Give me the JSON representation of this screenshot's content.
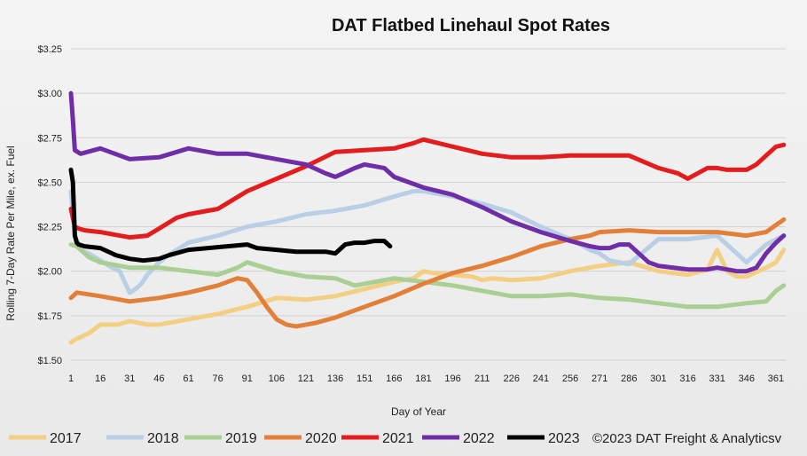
{
  "chart_data": {
    "type": "line",
    "title": "DAT Flatbed Linehaul Spot Rates",
    "xlabel": "Day of Year",
    "ylabel": "Rolling 7-Day Rate Per Mile, ex. Fuel",
    "xlim": [
      1,
      366
    ],
    "ylim": [
      1.5,
      3.25
    ],
    "grid": "horizontal",
    "x_ticks": [
      "1",
      "16",
      "31",
      "46",
      "61",
      "76",
      "91",
      "106",
      "121",
      "136",
      "151",
      "166",
      "181",
      "196",
      "211",
      "226",
      "241",
      "256",
      "271",
      "286",
      "301",
      "316",
      "331",
      "346",
      "361"
    ],
    "y_ticks": [
      "$1.50",
      "$1.75",
      "$2.00",
      "$2.25",
      "$2.50",
      "$2.75",
      "$3.00",
      "$3.25"
    ],
    "y_tick_values": [
      1.5,
      1.75,
      2.0,
      2.25,
      2.5,
      2.75,
      3.0,
      3.25
    ],
    "legend_position": "bottom",
    "annotation": "©2023 DAT Freight & Analyticsv",
    "series": [
      {
        "name": "2017",
        "color": "#f3cf84",
        "x": [
          1,
          4,
          10,
          16,
          25,
          31,
          40,
          46,
          61,
          76,
          91,
          106,
          121,
          136,
          151,
          166,
          176,
          181,
          186,
          196,
          206,
          211,
          216,
          226,
          241,
          256,
          271,
          286,
          301,
          316,
          326,
          331,
          336,
          341,
          346,
          356,
          361,
          365
        ],
        "y": [
          1.6,
          1.62,
          1.65,
          1.7,
          1.7,
          1.72,
          1.7,
          1.7,
          1.73,
          1.76,
          1.8,
          1.85,
          1.84,
          1.86,
          1.9,
          1.94,
          1.96,
          2.0,
          1.99,
          1.98,
          1.97,
          1.95,
          1.96,
          1.95,
          1.96,
          2.0,
          2.03,
          2.05,
          2.0,
          1.98,
          2.01,
          2.12,
          2.0,
          1.97,
          1.97,
          2.02,
          2.05,
          2.12
        ]
      },
      {
        "name": "2018",
        "color": "#b8cfe6",
        "x": [
          1,
          3,
          6,
          10,
          16,
          22,
          26,
          28,
          31,
          34,
          37,
          40,
          46,
          52,
          61,
          76,
          91,
          106,
          121,
          136,
          151,
          166,
          176,
          181,
          196,
          211,
          226,
          241,
          256,
          266,
          271,
          276,
          286,
          301,
          316,
          331,
          336,
          346,
          356,
          365
        ],
        "y": [
          2.45,
          2.2,
          2.12,
          2.1,
          2.06,
          2.02,
          2.0,
          1.95,
          1.88,
          1.9,
          1.93,
          1.98,
          2.05,
          2.1,
          2.16,
          2.2,
          2.25,
          2.28,
          2.32,
          2.34,
          2.37,
          2.42,
          2.45,
          2.45,
          2.42,
          2.38,
          2.33,
          2.25,
          2.18,
          2.12,
          2.1,
          2.06,
          2.04,
          2.18,
          2.18,
          2.2,
          2.15,
          2.05,
          2.15,
          2.2
        ]
      },
      {
        "name": "2019",
        "color": "#a9cf94",
        "x": [
          1,
          4,
          10,
          16,
          31,
          46,
          61,
          76,
          86,
          91,
          106,
          121,
          136,
          146,
          151,
          166,
          181,
          196,
          211,
          226,
          241,
          256,
          271,
          286,
          301,
          316,
          331,
          346,
          356,
          361,
          365
        ],
        "y": [
          2.15,
          2.14,
          2.08,
          2.05,
          2.02,
          2.02,
          2.0,
          1.98,
          2.02,
          2.05,
          2.0,
          1.97,
          1.96,
          1.92,
          1.93,
          1.96,
          1.94,
          1.92,
          1.89,
          1.86,
          1.86,
          1.87,
          1.85,
          1.84,
          1.82,
          1.8,
          1.8,
          1.82,
          1.83,
          1.89,
          1.92
        ]
      },
      {
        "name": "2020",
        "color": "#e2803a",
        "x": [
          1,
          4,
          10,
          16,
          31,
          46,
          61,
          76,
          86,
          91,
          96,
          101,
          106,
          111,
          116,
          121,
          126,
          136,
          151,
          166,
          181,
          196,
          211,
          226,
          241,
          256,
          266,
          271,
          286,
          301,
          316,
          331,
          346,
          356,
          361,
          365
        ],
        "y": [
          1.85,
          1.88,
          1.87,
          1.86,
          1.83,
          1.85,
          1.88,
          1.92,
          1.96,
          1.95,
          1.88,
          1.8,
          1.73,
          1.7,
          1.69,
          1.7,
          1.71,
          1.74,
          1.8,
          1.86,
          1.93,
          1.99,
          2.03,
          2.08,
          2.14,
          2.18,
          2.2,
          2.22,
          2.23,
          2.22,
          2.22,
          2.22,
          2.2,
          2.22,
          2.26,
          2.29
        ]
      },
      {
        "name": "2021",
        "color": "#e31d1d",
        "x": [
          1,
          3,
          5,
          8,
          16,
          31,
          40,
          46,
          55,
          61,
          76,
          91,
          106,
          121,
          136,
          151,
          166,
          176,
          181,
          196,
          211,
          226,
          241,
          256,
          271,
          286,
          301,
          311,
          316,
          321,
          326,
          331,
          336,
          346,
          351,
          356,
          361,
          365
        ],
        "y": [
          2.35,
          2.25,
          2.24,
          2.23,
          2.22,
          2.19,
          2.2,
          2.24,
          2.3,
          2.32,
          2.35,
          2.45,
          2.52,
          2.59,
          2.67,
          2.68,
          2.69,
          2.72,
          2.74,
          2.7,
          2.66,
          2.64,
          2.64,
          2.65,
          2.65,
          2.65,
          2.58,
          2.55,
          2.52,
          2.55,
          2.58,
          2.58,
          2.57,
          2.57,
          2.6,
          2.65,
          2.7,
          2.71
        ]
      },
      {
        "name": "2022",
        "color": "#6f2da8",
        "x": [
          1,
          2,
          3,
          6,
          16,
          31,
          46,
          61,
          66,
          76,
          91,
          106,
          121,
          131,
          136,
          146,
          151,
          161,
          166,
          181,
          196,
          211,
          226,
          241,
          256,
          266,
          271,
          276,
          281,
          286,
          296,
          301,
          316,
          326,
          331,
          341,
          346,
          351,
          356,
          361,
          365
        ],
        "y": [
          3.0,
          2.85,
          2.68,
          2.66,
          2.69,
          2.63,
          2.64,
          2.69,
          2.68,
          2.66,
          2.66,
          2.63,
          2.6,
          2.55,
          2.53,
          2.58,
          2.6,
          2.58,
          2.53,
          2.47,
          2.43,
          2.36,
          2.28,
          2.22,
          2.17,
          2.14,
          2.13,
          2.13,
          2.15,
          2.15,
          2.05,
          2.03,
          2.01,
          2.01,
          2.02,
          2.0,
          2.0,
          2.02,
          2.1,
          2.16,
          2.2
        ]
      },
      {
        "name": "2023",
        "color": "#000000",
        "x": [
          1,
          2,
          3,
          4,
          5,
          8,
          16,
          24,
          31,
          38,
          46,
          51,
          61,
          71,
          81,
          91,
          96,
          106,
          116,
          121,
          131,
          136,
          141,
          146,
          151,
          156,
          161,
          164
        ],
        "y": [
          2.57,
          2.5,
          2.2,
          2.16,
          2.15,
          2.14,
          2.13,
          2.09,
          2.07,
          2.06,
          2.07,
          2.09,
          2.12,
          2.13,
          2.14,
          2.15,
          2.13,
          2.12,
          2.11,
          2.11,
          2.11,
          2.1,
          2.15,
          2.16,
          2.16,
          2.17,
          2.17,
          2.14
        ]
      }
    ]
  }
}
